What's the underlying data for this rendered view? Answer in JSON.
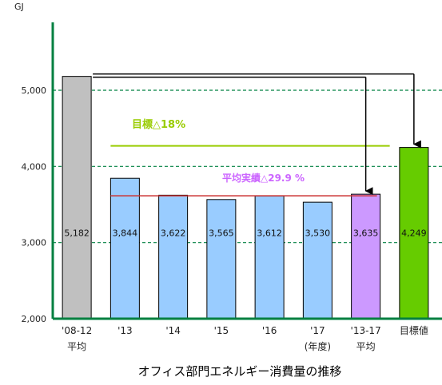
{
  "chart_data": {
    "type": "bar",
    "unit_label": "GJ",
    "title": "オフィス部門エネルギー消費量の推移",
    "categories": [
      [
        "'08-12",
        "平均"
      ],
      [
        "'13"
      ],
      [
        "'14"
      ],
      [
        "'15"
      ],
      [
        "'16"
      ],
      [
        "'17",
        "(年度)"
      ],
      [
        "'13-17",
        "平均"
      ],
      [
        "目標値"
      ]
    ],
    "values": [
      5182,
      3844,
      3622,
      3565,
      3612,
      3530,
      3635,
      4249
    ],
    "value_labels": [
      "5,182",
      "3,844",
      "3,622",
      "3,565",
      "3,612",
      "3,530",
      "3,635",
      "4,249"
    ],
    "bar_colors": [
      "#c0c0c0",
      "#99ccff",
      "#99ccff",
      "#99ccff",
      "#99ccff",
      "#99ccff",
      "#cc99ff",
      "#66cc00"
    ],
    "ylim": [
      2000,
      5000
    ],
    "y_ticks": [
      2000,
      3000,
      4000,
      5000
    ],
    "y_tick_labels": [
      "2,000",
      "3,000",
      "4,000",
      "5,000"
    ],
    "grid": "dashed horizontal",
    "annotations": {
      "target": {
        "text": "目標△18%",
        "value": 4249,
        "color": "#99cc00"
      },
      "average": {
        "text": "平均実績△29.9 %",
        "value": 3635,
        "color": "#cc66ff",
        "line_color": "#cc3333"
      }
    }
  }
}
